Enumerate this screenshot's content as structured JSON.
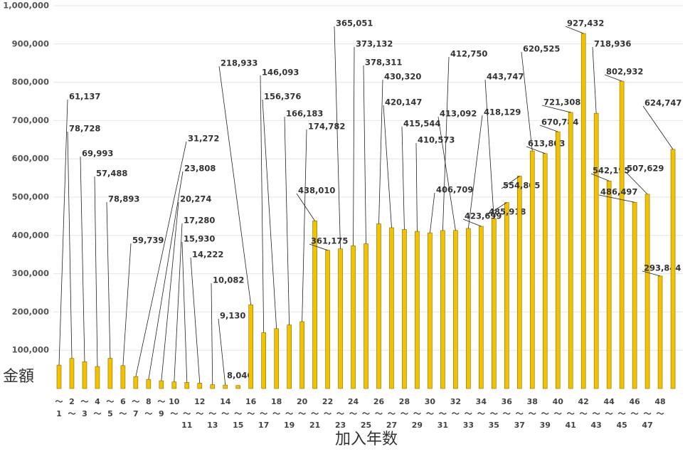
{
  "chart_data": {
    "type": "bar",
    "y_label": "金額",
    "x_label": "加入年数",
    "color": "#f2c200",
    "edge_color": "#8a6d00",
    "grid": true,
    "ylim": [
      0,
      1000000
    ],
    "yticks": [
      {
        "value": 100000,
        "label": "100,000"
      },
      {
        "value": 200000,
        "label": "200,000"
      },
      {
        "value": 300000,
        "label": "300,000"
      },
      {
        "value": 400000,
        "label": "400,000"
      },
      {
        "value": 500000,
        "label": "500,000"
      },
      {
        "value": 600000,
        "label": "600,000"
      },
      {
        "value": 700000,
        "label": "700,000"
      },
      {
        "value": 800000,
        "label": "800,000"
      },
      {
        "value": 900000,
        "label": "900,000"
      },
      {
        "value": 1000000,
        "label": "1,000,000"
      }
    ],
    "categories": [
      "〜1",
      "2〜",
      "〜3",
      "4〜",
      "〜5",
      "6〜",
      "〜7",
      "8〜",
      "〜9",
      "10〜",
      "〜11",
      "12〜",
      "〜13",
      "14〜",
      "〜15",
      "16〜",
      "〜17",
      "18〜",
      "〜19",
      "20〜",
      "〜21",
      "22〜",
      "〜23",
      "24〜",
      "〜25",
      "26〜",
      "〜27",
      "28〜",
      "〜29",
      "30〜",
      "〜31",
      "32〜",
      "〜33",
      "34〜",
      "〜35",
      "36〜",
      "〜37",
      "38〜",
      "〜39",
      "40〜",
      "〜41",
      "42〜",
      "〜43",
      "44〜",
      "〜45",
      "46〜",
      "〜47",
      "48〜",
      null
    ],
    "values": [
      61137,
      78728,
      69993,
      57488,
      78893,
      59739,
      31272,
      23808,
      20274,
      17280,
      15930,
      14222,
      10082,
      9130,
      8046,
      218933,
      146093,
      156376,
      166183,
      174782,
      438010,
      361175,
      365051,
      373132,
      378311,
      430320,
      420147,
      415544,
      410573,
      406709,
      412750,
      413092,
      418129,
      423699,
      443747,
      485918,
      554805,
      620525,
      613803,
      670784,
      721308,
      927432,
      718936,
      542195,
      802932,
      486497,
      507629,
      293844,
      624747
    ],
    "value_labels": [
      "61,137",
      "78,728",
      "69,993",
      "57,488",
      "78,893",
      "59,739",
      "31,272",
      "23,808",
      "20,274",
      "17,280",
      "15,930",
      "14,222",
      "10,082",
      "9,130",
      "8,046",
      "218,933",
      "146,093",
      "156,376",
      "166,183",
      "174,782",
      "438,010",
      "361,175",
      "365,051",
      "373,132",
      "378,311",
      "430,320",
      "420,147",
      "415,544",
      "410,573",
      "406,709",
      "412,750",
      "413,092",
      "418,129",
      "423,699",
      "443,747",
      "485,918",
      "554,805",
      "620,525",
      "613,803",
      "670,784",
      "721,308",
      "927,432",
      "718,936",
      "542,195",
      "802,932",
      "486,497",
      "507,629",
      "293,844",
      "624,747"
    ]
  }
}
